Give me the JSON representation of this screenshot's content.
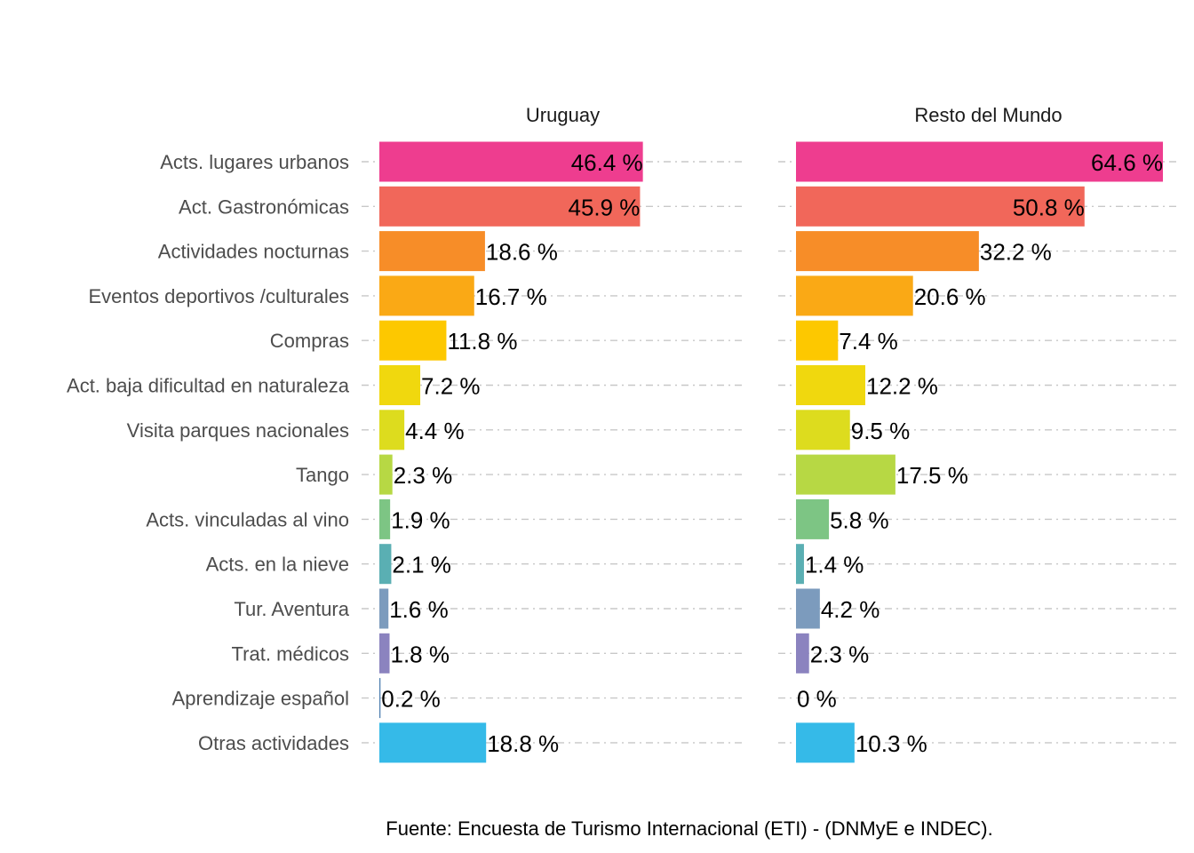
{
  "chart_data": {
    "type": "bar",
    "orientation": "horizontal",
    "categories": [
      "Acts. lugares urbanos",
      "Act. Gastronómicas",
      "Actividades nocturnas",
      "Eventos deportivos /culturales",
      "Compras",
      "Act. baja dificultad en naturaleza",
      "Visita parques nacionales",
      "Tango",
      "Acts. vinculadas al vino",
      "Acts. en la nieve",
      "Tur. Aventura",
      "Trat. médicos",
      "Aprendizaje español",
      "Otras actividades"
    ],
    "colors": [
      "#EE3D8F",
      "#F1675A",
      "#F78D28",
      "#FAA915",
      "#FDC800",
      "#F0D80E",
      "#DDDC1E",
      "#B7D844",
      "#7DC584",
      "#5AAFB3",
      "#7C9BBD",
      "#8B83BF",
      "#4E7FB0",
      "#35BAE8"
    ],
    "series": [
      {
        "name": "Uruguay",
        "values": [
          46.4,
          45.9,
          18.6,
          16.7,
          11.8,
          7.2,
          4.4,
          2.3,
          1.9,
          2.1,
          1.6,
          1.8,
          0.2,
          18.8
        ],
        "labels": [
          "46.4 %",
          "45.9 %",
          "18.6 %",
          "16.7 %",
          "11.8 %",
          "7.2 %",
          "4.4 %",
          "2.3 %",
          "1.9 %",
          "2.1 %",
          "1.6 %",
          "1.8 %",
          "0.2 %",
          "18.8 %"
        ]
      },
      {
        "name": "Resto del Mundo",
        "values": [
          64.6,
          50.8,
          32.2,
          20.6,
          7.4,
          12.2,
          9.5,
          17.5,
          5.8,
          1.4,
          4.2,
          2.3,
          0,
          10.3
        ],
        "labels": [
          "64.6 %",
          "50.8 %",
          "32.2 %",
          "20.6 %",
          "7.4 %",
          "12.2 %",
          "9.5 %",
          "17.5 %",
          "5.8 %",
          "1.4 %",
          "4.2 %",
          "2.3 %",
          "0 %",
          "10.3 %"
        ]
      }
    ],
    "xlim": [
      0,
      70
    ],
    "grid": "horizontal dashed",
    "legend": "none",
    "caption": "Fuente: Encuesta de Turismo Internacional (ETI) - (DNMyE e INDEC)."
  }
}
